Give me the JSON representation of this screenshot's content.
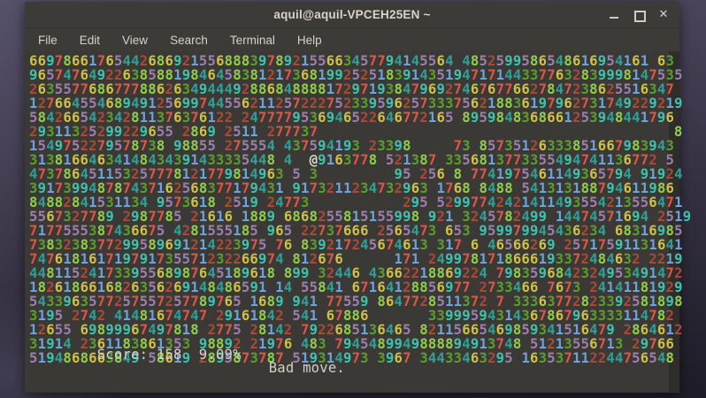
{
  "window": {
    "title": "aquil@aquil-VPCEH25EN ~",
    "controls": {
      "minimize": "minimize",
      "maximize": "maximize",
      "close": "✕"
    }
  },
  "menu": {
    "items": [
      "File",
      "Edit",
      "View",
      "Search",
      "Terminal",
      "Help"
    ]
  },
  "game": {
    "name": "greed-terminal-game",
    "player_char": "@",
    "digit_colors": {
      "1": "#6fa3d8",
      "2": "#a94a38",
      "3": "#5c9c30",
      "4": "#30a096",
      "5": "#9d7fae",
      "6": "#cec04a",
      "7": "#e05545",
      "8": "#92ce4e",
      "9": "#41c1ad",
      "@": "#d8d6cf"
    },
    "rows": [
      "66978661765442686921556888397892155663457794145564 4852599586548616954161 63",
      "96574764922638588198464583812173681992525183914351947171443377632839998147535",
      "2635577686777886263494449288684888817297193847969274676776627847238625516347",
      "12766455468949125699744556211257222752339596257333756218836197962731749229219",
      "584266542342811376376122 2477779536946522646772165 8959848368661253948441796",
      "29311325299229655 2869 2511 277737                                          8",
      "1549752279578738 98855 275554 437594193 23398     73 85735126333851667983943",
      "31381664634148434391433335448 4  @9163778 521387 3356813773355494741136772 5",
      "473786451153257778121779814963 5 3         95 256 8 7741975461149365794 91924",
      "391739948787437162568377179431 9173211234732963 1768 8488 541313188794611986",
      "84882841531134 9573618 2519 24773           295 52997742421411493554213556471",
      "5567327789 2987785 21616 1889 6868255815155998 921 3245782499 14474571694 2519",
      "7177555387436675 4281555185 965 22737666 2565473 653 959979945436234 68316985",
      "7383238377299589691214223975 76 839217245674613 317 6 46566269 25717591131641",
      "747618161719791735571232266974 812676      171 2499781718666193372484632 2219",
      "44811524173395568987645189618 899 32446 43662218869224 7983596842324953491472",
      "1826186616826356269148486591 14 55841 67164128856977 2733466 7673 24141181929",
      "5433963577257557257789765 1689 941 77559 8647728511372 7 33363772823392581898",
      "3195 2742 41481674747 29161842 541 67886       33999594314367867963333114782",
      "12655 69899967497818 2775 28142 7922685136465 82115665469859341516479 2864612",
      "31914 2361183861353 98892 21976 483 7945489949888894913748 51213556713 29766",
      "5194868663849 58619 2895873787 519314973 3967 34433463295 163537112244756548"
    ]
  },
  "status": {
    "score_label": "Score: 158  9.09%",
    "message": "Bad move."
  }
}
